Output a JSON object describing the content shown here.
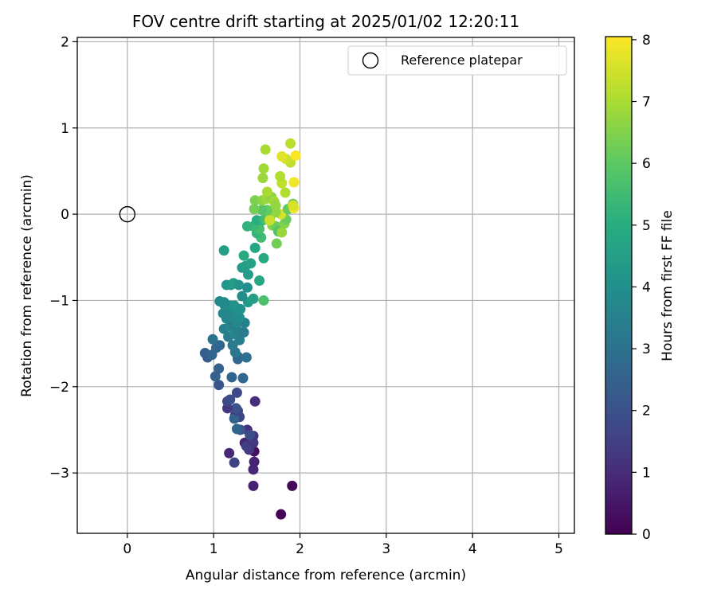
{
  "chart_data": {
    "type": "scatter",
    "title": "FOV centre drift starting at 2025/01/02 12:20:11",
    "xlabel": "Angular distance from reference (arcmin)",
    "ylabel": "Rotation from reference (arcmin)",
    "xlim": [
      -0.58,
      5.18
    ],
    "ylim": [
      -3.7,
      2.05
    ],
    "xticks": [
      0,
      1,
      2,
      3,
      4,
      5
    ],
    "xtick_labels": [
      "0",
      "1",
      "2",
      "3",
      "4",
      "5"
    ],
    "yticks": [
      -3,
      -2,
      -1,
      0,
      1,
      2
    ],
    "ytick_labels": [
      "−3",
      "−2",
      "−1",
      "0",
      "1",
      "2"
    ],
    "grid": true,
    "legend": {
      "position": "top-right",
      "entries": [
        "Reference platepar"
      ]
    },
    "reference_point": {
      "x": 0.0,
      "y": 0.0,
      "label": "Reference platepar"
    },
    "colorbar": {
      "label": "Hours from first FF file",
      "colormap": "viridis",
      "range": [
        0,
        8.05
      ],
      "ticks": [
        0,
        1,
        2,
        3,
        4,
        5,
        6,
        7,
        8
      ],
      "tick_labels": [
        "0",
        "1",
        "2",
        "3",
        "4",
        "5",
        "6",
        "7",
        "8"
      ]
    },
    "points": [
      {
        "x": 1.78,
        "y": -3.48,
        "c": 0.05
      },
      {
        "x": 1.91,
        "y": -3.15,
        "c": 0.15
      },
      {
        "x": 1.46,
        "y": -3.15,
        "c": 0.8
      },
      {
        "x": 1.46,
        "y": -2.96,
        "c": 0.9
      },
      {
        "x": 1.47,
        "y": -2.87,
        "c": 0.8
      },
      {
        "x": 1.47,
        "y": -2.75,
        "c": 0.3
      },
      {
        "x": 1.18,
        "y": -2.77,
        "c": 0.9
      },
      {
        "x": 1.24,
        "y": -2.88,
        "c": 1.6
      },
      {
        "x": 1.36,
        "y": -2.65,
        "c": 0.8
      },
      {
        "x": 1.41,
        "y": -2.73,
        "c": 1.3
      },
      {
        "x": 1.38,
        "y": -2.69,
        "c": 1.5
      },
      {
        "x": 1.46,
        "y": -2.65,
        "c": 1.3
      },
      {
        "x": 1.46,
        "y": -2.57,
        "c": 1.2
      },
      {
        "x": 1.39,
        "y": -2.5,
        "c": 1.1
      },
      {
        "x": 1.42,
        "y": -2.56,
        "c": 1.9
      },
      {
        "x": 1.31,
        "y": -2.5,
        "c": 2.0
      },
      {
        "x": 1.27,
        "y": -2.49,
        "c": 2.6
      },
      {
        "x": 1.3,
        "y": -2.35,
        "c": 1.6
      },
      {
        "x": 1.25,
        "y": -2.33,
        "c": 1.4
      },
      {
        "x": 1.24,
        "y": -2.37,
        "c": 2.5
      },
      {
        "x": 1.28,
        "y": -2.28,
        "c": 1.7
      },
      {
        "x": 1.26,
        "y": -2.25,
        "c": 2.0
      },
      {
        "x": 1.16,
        "y": -2.25,
        "c": 1.3
      },
      {
        "x": 1.16,
        "y": -2.17,
        "c": 1.7
      },
      {
        "x": 1.19,
        "y": -2.15,
        "c": 1.9
      },
      {
        "x": 1.48,
        "y": -2.17,
        "c": 1.0
      },
      {
        "x": 1.27,
        "y": -2.07,
        "c": 1.8
      },
      {
        "x": 1.06,
        "y": -1.98,
        "c": 2.1
      },
      {
        "x": 1.02,
        "y": -1.88,
        "c": 2.5
      },
      {
        "x": 1.21,
        "y": -1.89,
        "c": 2.6
      },
      {
        "x": 1.34,
        "y": -1.9,
        "c": 2.7
      },
      {
        "x": 1.06,
        "y": -1.79,
        "c": 2.5
      },
      {
        "x": 0.9,
        "y": -1.61,
        "c": 2.4
      },
      {
        "x": 0.93,
        "y": -1.66,
        "c": 2.3
      },
      {
        "x": 0.98,
        "y": -1.63,
        "c": 2.6
      },
      {
        "x": 1.03,
        "y": -1.55,
        "c": 2.7
      },
      {
        "x": 1.07,
        "y": -1.52,
        "c": 2.6
      },
      {
        "x": 0.99,
        "y": -1.45,
        "c": 3.0
      },
      {
        "x": 1.28,
        "y": -1.65,
        "c": 3.0
      },
      {
        "x": 1.28,
        "y": -1.68,
        "c": 2.7
      },
      {
        "x": 1.38,
        "y": -1.66,
        "c": 2.9
      },
      {
        "x": 1.25,
        "y": -1.6,
        "c": 3.2
      },
      {
        "x": 1.22,
        "y": -1.52,
        "c": 3.3
      },
      {
        "x": 1.3,
        "y": -1.46,
        "c": 3.4
      },
      {
        "x": 1.17,
        "y": -1.42,
        "c": 3.3
      },
      {
        "x": 1.24,
        "y": -1.39,
        "c": 3.6
      },
      {
        "x": 1.29,
        "y": -1.36,
        "c": 3.5
      },
      {
        "x": 1.35,
        "y": -1.37,
        "c": 3.3
      },
      {
        "x": 1.12,
        "y": -1.33,
        "c": 3.5
      },
      {
        "x": 1.19,
        "y": -1.3,
        "c": 3.7
      },
      {
        "x": 1.23,
        "y": -1.28,
        "c": 3.4
      },
      {
        "x": 1.27,
        "y": -1.26,
        "c": 3.8
      },
      {
        "x": 1.36,
        "y": -1.26,
        "c": 3.5
      },
      {
        "x": 1.15,
        "y": -1.21,
        "c": 3.6
      },
      {
        "x": 1.21,
        "y": -1.18,
        "c": 3.8
      },
      {
        "x": 1.3,
        "y": -1.2,
        "c": 3.9
      },
      {
        "x": 1.17,
        "y": -1.15,
        "c": 3.6
      },
      {
        "x": 1.11,
        "y": -1.15,
        "c": 3.7
      },
      {
        "x": 1.26,
        "y": -1.11,
        "c": 4.0
      },
      {
        "x": 1.31,
        "y": -1.1,
        "c": 4.1
      },
      {
        "x": 1.13,
        "y": -1.06,
        "c": 3.8
      },
      {
        "x": 1.19,
        "y": -1.06,
        "c": 3.9
      },
      {
        "x": 1.07,
        "y": -1.01,
        "c": 3.7
      },
      {
        "x": 1.12,
        "y": -1.02,
        "c": 3.8
      },
      {
        "x": 1.24,
        "y": -1.06,
        "c": 4.1
      },
      {
        "x": 1.4,
        "y": -1.02,
        "c": 4.3
      },
      {
        "x": 1.46,
        "y": -0.98,
        "c": 4.5
      },
      {
        "x": 1.33,
        "y": -0.95,
        "c": 3.9
      },
      {
        "x": 1.58,
        "y": -1.0,
        "c": 5.7
      },
      {
        "x": 1.15,
        "y": -0.82,
        "c": 4.2
      },
      {
        "x": 1.2,
        "y": -0.82,
        "c": 4.3
      },
      {
        "x": 1.23,
        "y": -0.8,
        "c": 4.4
      },
      {
        "x": 1.29,
        "y": -0.82,
        "c": 4.1
      },
      {
        "x": 1.39,
        "y": -0.85,
        "c": 4.0
      },
      {
        "x": 1.53,
        "y": -0.77,
        "c": 4.8
      },
      {
        "x": 1.4,
        "y": -0.7,
        "c": 4.4
      },
      {
        "x": 1.33,
        "y": -0.62,
        "c": 4.3
      },
      {
        "x": 1.37,
        "y": -0.6,
        "c": 4.5
      },
      {
        "x": 1.43,
        "y": -0.57,
        "c": 4.6
      },
      {
        "x": 1.35,
        "y": -0.48,
        "c": 4.9
      },
      {
        "x": 1.12,
        "y": -0.42,
        "c": 4.5
      },
      {
        "x": 1.48,
        "y": -0.39,
        "c": 4.8
      },
      {
        "x": 1.58,
        "y": -0.51,
        "c": 4.9
      },
      {
        "x": 1.55,
        "y": -0.27,
        "c": 5.5
      },
      {
        "x": 1.5,
        "y": -0.22,
        "c": 5.3
      },
      {
        "x": 1.53,
        "y": -0.17,
        "c": 5.6
      },
      {
        "x": 1.46,
        "y": -0.14,
        "c": 5.4
      },
      {
        "x": 1.39,
        "y": -0.14,
        "c": 5.2
      },
      {
        "x": 1.5,
        "y": -0.07,
        "c": 5.0
      },
      {
        "x": 1.57,
        "y": -0.07,
        "c": 5.2
      },
      {
        "x": 1.6,
        "y": -0.06,
        "c": 5.6
      },
      {
        "x": 1.65,
        "y": -0.05,
        "c": 6.3
      },
      {
        "x": 1.68,
        "y": -0.13,
        "c": 6.6
      },
      {
        "x": 1.72,
        "y": -0.14,
        "c": 6.2
      },
      {
        "x": 1.75,
        "y": -0.2,
        "c": 5.8
      },
      {
        "x": 1.73,
        "y": -0.34,
        "c": 6.3
      },
      {
        "x": 1.79,
        "y": -0.21,
        "c": 6.8
      },
      {
        "x": 1.82,
        "y": -0.11,
        "c": 6.5
      },
      {
        "x": 1.84,
        "y": -0.06,
        "c": 6.2
      },
      {
        "x": 1.78,
        "y": 0.0,
        "c": 7.6
      },
      {
        "x": 1.72,
        "y": 0.02,
        "c": 6.7
      },
      {
        "x": 1.65,
        "y": -0.07,
        "c": 7.4
      },
      {
        "x": 1.62,
        "y": 0.05,
        "c": 6.1
      },
      {
        "x": 1.56,
        "y": 0.05,
        "c": 5.9
      },
      {
        "x": 1.47,
        "y": 0.06,
        "c": 6.3
      },
      {
        "x": 1.48,
        "y": 0.16,
        "c": 6.4
      },
      {
        "x": 1.56,
        "y": 0.16,
        "c": 6.6
      },
      {
        "x": 1.61,
        "y": 0.18,
        "c": 6.8
      },
      {
        "x": 1.67,
        "y": 0.2,
        "c": 6.6
      },
      {
        "x": 1.7,
        "y": 0.15,
        "c": 6.9
      },
      {
        "x": 1.72,
        "y": 0.1,
        "c": 6.7
      },
      {
        "x": 1.86,
        "y": 0.06,
        "c": 6.1
      },
      {
        "x": 1.92,
        "y": 0.12,
        "c": 6.2
      },
      {
        "x": 1.93,
        "y": 0.07,
        "c": 7.9
      },
      {
        "x": 1.92,
        "y": 0.1,
        "c": 7.6
      },
      {
        "x": 1.62,
        "y": 0.26,
        "c": 7.0
      },
      {
        "x": 1.83,
        "y": 0.25,
        "c": 7.1
      },
      {
        "x": 1.79,
        "y": 0.36,
        "c": 7.3
      },
      {
        "x": 1.93,
        "y": 0.37,
        "c": 7.9
      },
      {
        "x": 1.57,
        "y": 0.42,
        "c": 6.8
      },
      {
        "x": 1.77,
        "y": 0.44,
        "c": 7.1
      },
      {
        "x": 1.58,
        "y": 0.53,
        "c": 6.9
      },
      {
        "x": 1.89,
        "y": 0.6,
        "c": 7.3
      },
      {
        "x": 1.84,
        "y": 0.64,
        "c": 7.5
      },
      {
        "x": 1.79,
        "y": 0.67,
        "c": 7.7
      },
      {
        "x": 1.95,
        "y": 0.68,
        "c": 8.0
      },
      {
        "x": 1.6,
        "y": 0.75,
        "c": 7.0
      },
      {
        "x": 1.89,
        "y": 0.82,
        "c": 7.2
      }
    ]
  }
}
